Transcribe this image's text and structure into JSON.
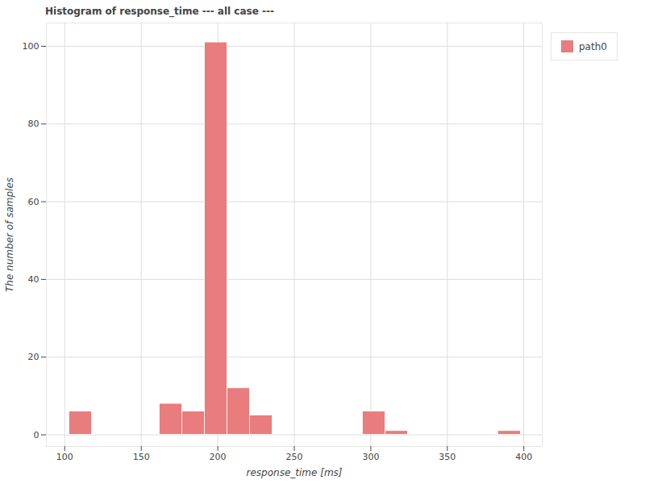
{
  "chart_data": {
    "type": "histogram",
    "title": "Histogram of response_time --- all case ---",
    "x_label": "response_time [ms]",
    "y_label": "The number of samples",
    "bins": [
      103,
      117.75,
      132.5,
      147.25,
      162,
      176.75,
      191.5,
      206.25,
      221,
      235.75,
      250.5,
      265.25,
      280,
      294.75,
      309.5,
      324.25,
      339,
      353.75,
      368.5,
      383.25,
      398
    ],
    "series": [
      {
        "name": "path0",
        "color": "#e97c7c",
        "values": [
          6,
          0,
          0,
          0,
          8,
          6,
          101,
          12,
          5,
          0,
          0,
          0,
          0,
          6,
          1,
          0,
          0,
          0,
          0,
          1
        ]
      }
    ],
    "xlim": [
      88,
      412
    ],
    "xticks": [
      100,
      150,
      200,
      250,
      300,
      350,
      400
    ],
    "ylim": [
      -3,
      106
    ],
    "yticks": [
      0,
      20,
      40,
      60,
      80,
      100
    ],
    "grid": true,
    "legend": "top-right"
  }
}
